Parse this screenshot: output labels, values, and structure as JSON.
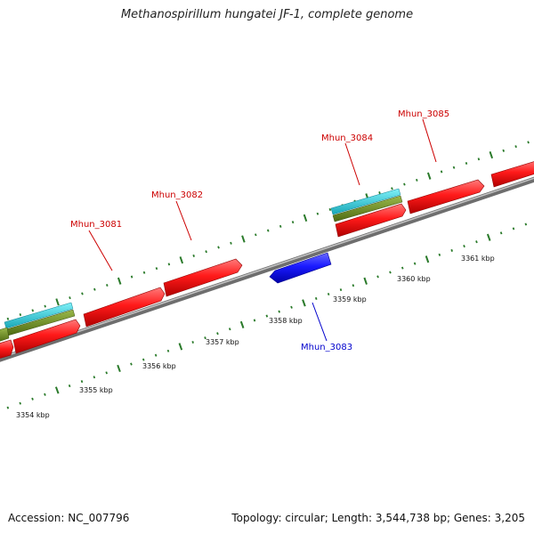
{
  "title": "Methanospirillum hungatei JF-1, complete genome",
  "footer": {
    "accession": "Accession: NC_007796",
    "summary": "Topology: circular; Length: 3,544,738 bp; Genes: 3,205"
  },
  "colors": {
    "forward_gene": "#ff1a1a",
    "reverse_gene": "#1a1aff",
    "cyan_track": "#22c8d8",
    "olive_track": "#6e8c1e",
    "backbone": "#808080",
    "ticks": "#2a7a2a",
    "forward_label": "#cc0000",
    "reverse_label": "#0000cc"
  },
  "scale_labels": [
    "3354 kbp",
    "3355 kbp",
    "3356 kbp",
    "3357 kbp",
    "3358 kbp",
    "3359 kbp",
    "3360 kbp",
    "3361 kbp"
  ],
  "gene_labels": [
    {
      "id": "Mhun_3081",
      "strand": "forward"
    },
    {
      "id": "Mhun_3082",
      "strand": "forward"
    },
    {
      "id": "Mhun_3083",
      "strand": "reverse"
    },
    {
      "id": "Mhun_3084",
      "strand": "forward"
    },
    {
      "id": "Mhun_3085",
      "strand": "forward"
    }
  ]
}
